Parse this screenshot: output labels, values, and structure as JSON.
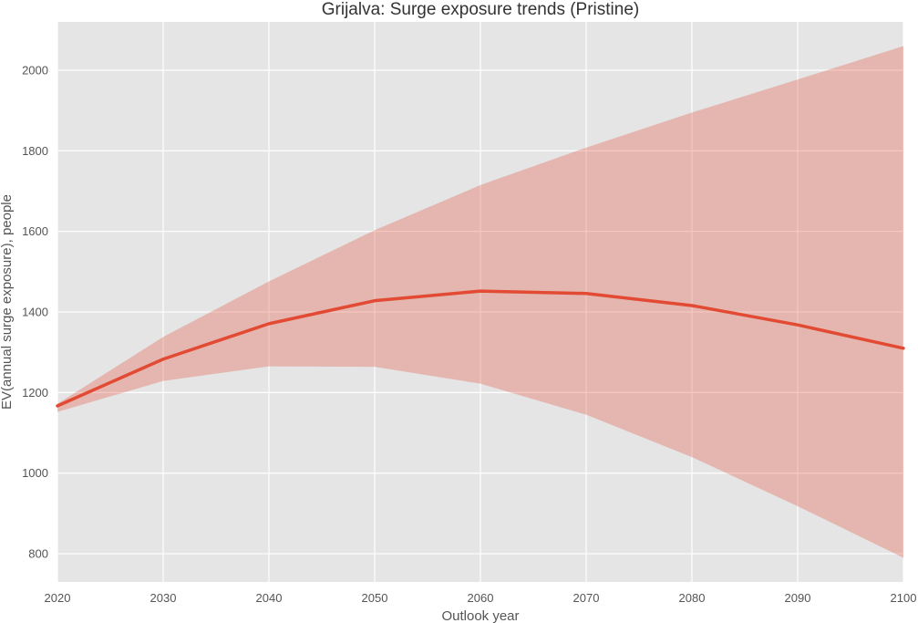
{
  "chart_data": {
    "type": "line",
    "title": "Grijalva: Surge exposure trends (Pristine)",
    "xlabel": "Outlook year",
    "ylabel": "EV(annual surge exposure), people",
    "x": [
      2020,
      2030,
      2040,
      2050,
      2060,
      2070,
      2080,
      2090,
      2100
    ],
    "xlim": [
      2020,
      2100
    ],
    "ylim": [
      730,
      2120
    ],
    "xticks": [
      2020,
      2030,
      2040,
      2050,
      2060,
      2070,
      2080,
      2090,
      2100
    ],
    "yticks": [
      800,
      1000,
      1200,
      1400,
      1600,
      1800,
      2000
    ],
    "grid": true,
    "series": [
      {
        "values": [
          1167,
          1283,
          1371,
          1428,
          1452,
          1446,
          1416,
          1368,
          1310
        ],
        "band_upper": [
          1172,
          1338,
          1476,
          1603,
          1715,
          1808,
          1895,
          1977,
          2060
        ],
        "band_lower": [
          1152,
          1229,
          1265,
          1264,
          1222,
          1145,
          1040,
          918,
          790
        ],
        "color": "#E24A33",
        "band_color": "#E24A33"
      }
    ],
    "background": "#E5E5E5"
  }
}
